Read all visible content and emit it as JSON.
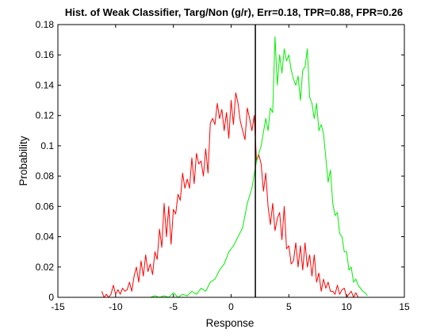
{
  "chart_data": {
    "type": "line",
    "title": "Hist. of Weak Classifier, Targ/Non (g/r), Err=0.18, TPR=0.88, FPR=0.26",
    "xlabel": "Response",
    "ylabel": "Probability",
    "xlim": [
      -15,
      15
    ],
    "ylim": [
      0,
      0.18
    ],
    "xticks": [
      "-15",
      "-10",
      "-5",
      "0",
      "5",
      "10",
      "15"
    ],
    "yticks": [
      "0",
      "0.02",
      "0.04",
      "0.06",
      "0.08",
      "0.1",
      "0.12",
      "0.14",
      "0.16",
      "0.18"
    ],
    "grid": false,
    "threshold_x": 2.1,
    "threshold_color": "#000000",
    "series": [
      {
        "color": "#ff0000",
        "x": [
          -11.2,
          -11.0,
          -10.8,
          -10.6,
          -10.4,
          -10.2,
          -10.0,
          -9.8,
          -9.6,
          -9.4,
          -9.2,
          -9.0,
          -8.8,
          -8.6,
          -8.4,
          -8.2,
          -8.0,
          -7.8,
          -7.6,
          -7.4,
          -7.2,
          -7.0,
          -6.8,
          -6.6,
          -6.4,
          -6.2,
          -6.0,
          -5.8,
          -5.6,
          -5.4,
          -5.2,
          -5.0,
          -4.8,
          -4.6,
          -4.4,
          -4.2,
          -4.0,
          -3.8,
          -3.6,
          -3.4,
          -3.2,
          -3.0,
          -2.8,
          -2.6,
          -2.4,
          -2.2,
          -2.0,
          -1.8,
          -1.6,
          -1.4,
          -1.2,
          -1.0,
          -0.8,
          -0.6,
          -0.4,
          -0.2,
          0.0,
          0.2,
          0.4,
          0.6,
          0.8,
          1.0,
          1.2,
          1.4,
          1.6,
          1.8,
          2.0,
          2.2,
          2.4,
          2.6,
          2.8,
          3.0,
          3.2,
          3.4,
          3.6,
          3.8,
          4.0,
          4.2,
          4.4,
          4.6,
          4.8,
          5.0,
          5.2,
          5.4,
          5.6,
          5.8,
          6.0,
          6.2,
          6.4,
          6.6,
          6.8,
          7.0,
          7.2,
          7.4,
          7.6,
          7.8,
          8.0,
          8.2,
          8.4,
          8.6,
          8.8,
          9.0,
          9.2,
          9.4,
          9.6,
          9.8,
          10.0,
          10.2,
          10.4,
          10.6,
          10.8,
          11.0
        ],
        "y": [
          0.004,
          0.0,
          0.002,
          0.0,
          0.002,
          0.008,
          0.002,
          0.005,
          0.002,
          0.006,
          0.004,
          0.005,
          0.01,
          0.004,
          0.014,
          0.02,
          0.01,
          0.024,
          0.014,
          0.028,
          0.017,
          0.022,
          0.015,
          0.03,
          0.025,
          0.045,
          0.033,
          0.062,
          0.04,
          0.06,
          0.035,
          0.058,
          0.055,
          0.068,
          0.064,
          0.082,
          0.072,
          0.078,
          0.072,
          0.092,
          0.075,
          0.095,
          0.088,
          0.09,
          0.08,
          0.098,
          0.082,
          0.115,
          0.118,
          0.114,
          0.128,
          0.118,
          0.124,
          0.11,
          0.122,
          0.105,
          0.13,
          0.114,
          0.135,
          0.128,
          0.116,
          0.11,
          0.104,
          0.125,
          0.118,
          0.11,
          0.12,
          0.09,
          0.094,
          0.088,
          0.07,
          0.082,
          0.06,
          0.048,
          0.062,
          0.044,
          0.052,
          0.056,
          0.038,
          0.06,
          0.032,
          0.034,
          0.022,
          0.024,
          0.036,
          0.02,
          0.034,
          0.018,
          0.036,
          0.02,
          0.028,
          0.014,
          0.028,
          0.01,
          0.016,
          0.004,
          0.012,
          0.006,
          0.01,
          0.004,
          0.004,
          0.002,
          0.008,
          0.002,
          0.005,
          0.006,
          0.0,
          0.002,
          0.004,
          0.0,
          0.003,
          0.0
        ]
      },
      {
        "color": "#00ee00",
        "x": [
          -7.8,
          -7.4,
          -7.0,
          -6.6,
          -6.2,
          -5.8,
          -5.4,
          -5.0,
          -4.6,
          -4.2,
          -3.8,
          -3.4,
          -3.0,
          -2.6,
          -2.2,
          -1.8,
          -1.4,
          -1.0,
          -0.6,
          -0.2,
          0.2,
          0.6,
          1.0,
          1.4,
          1.8,
          2.2,
          2.6,
          3.0,
          3.2,
          3.4,
          3.6,
          3.8,
          4.0,
          4.2,
          4.4,
          4.6,
          4.8,
          5.0,
          5.2,
          5.4,
          5.6,
          5.8,
          6.0,
          6.2,
          6.4,
          6.6,
          6.8,
          7.0,
          7.2,
          7.4,
          7.6,
          7.8,
          8.0,
          8.2,
          8.4,
          8.6,
          8.8,
          9.0,
          9.2,
          9.4,
          9.6,
          9.8,
          10.0,
          10.2,
          10.4,
          10.6,
          10.8,
          11.0,
          11.2,
          11.4,
          11.6,
          11.8
        ],
        "y": [
          0.0,
          0.0,
          0.0,
          0.001,
          0.0,
          0.001,
          0.0,
          0.003,
          0.0,
          0.002,
          0.001,
          0.004,
          0.002,
          0.006,
          0.004,
          0.01,
          0.012,
          0.018,
          0.022,
          0.03,
          0.034,
          0.04,
          0.046,
          0.062,
          0.072,
          0.09,
          0.1,
          0.118,
          0.11,
          0.125,
          0.122,
          0.172,
          0.14,
          0.16,
          0.148,
          0.164,
          0.156,
          0.16,
          0.15,
          0.144,
          0.14,
          0.146,
          0.13,
          0.15,
          0.152,
          0.164,
          0.132,
          0.128,
          0.118,
          0.128,
          0.11,
          0.114,
          0.108,
          0.092,
          0.076,
          0.084,
          0.062,
          0.054,
          0.056,
          0.042,
          0.04,
          0.03,
          0.03,
          0.018,
          0.02,
          0.01,
          0.012,
          0.008,
          0.006,
          0.004,
          0.003,
          0.001
        ]
      }
    ]
  }
}
